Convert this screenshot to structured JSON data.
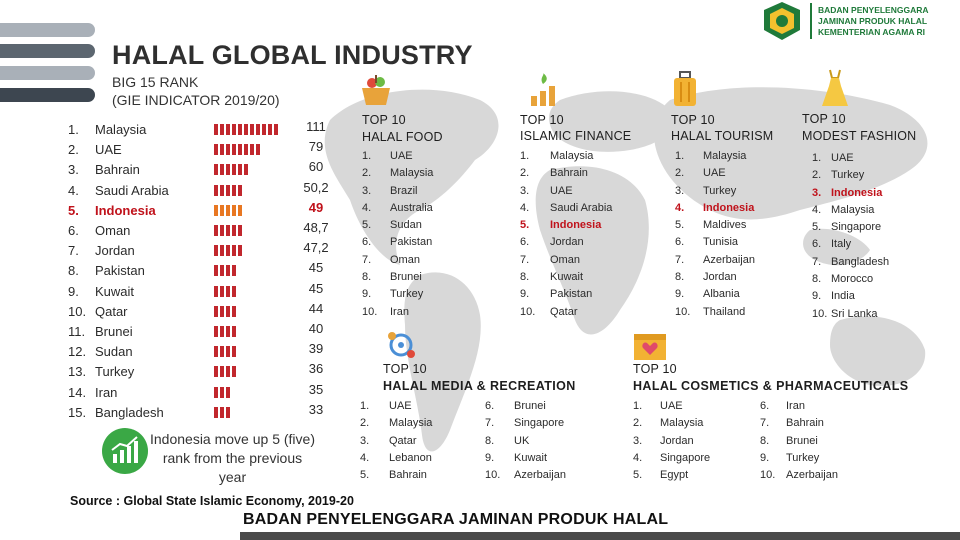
{
  "header": {
    "title": "HALAL GLOBAL INDUSTRY",
    "subtitle_line1": "BIG 15 RANK",
    "subtitle_line2": "(GIE INDICATOR 2019/20)"
  },
  "logo": {
    "line1": "BADAN PENYELENGGARA",
    "line2": "JAMINAN PRODUK HALAL",
    "line3": "KEMENTERIAN AGAMA RI"
  },
  "ranking": [
    {
      "rank": "1.",
      "country": "Malaysia",
      "score": "111",
      "score_value": 111,
      "highlight": false
    },
    {
      "rank": "2.",
      "country": "UAE",
      "score": "79",
      "score_value": 79,
      "highlight": false
    },
    {
      "rank": "3.",
      "country": "Bahrain",
      "score": "60",
      "score_value": 60,
      "highlight": false
    },
    {
      "rank": "4.",
      "country": "Saudi Arabia",
      "score": "50,2",
      "score_value": 50.2,
      "highlight": false
    },
    {
      "rank": "5.",
      "country": "Indonesia",
      "score": "49",
      "score_value": 49,
      "highlight": true
    },
    {
      "rank": "6.",
      "country": "Oman",
      "score": "48,7",
      "score_value": 48.7,
      "highlight": false
    },
    {
      "rank": "7.",
      "country": "Jordan",
      "score": "47,2",
      "score_value": 47.2,
      "highlight": false
    },
    {
      "rank": "8.",
      "country": "Pakistan",
      "score": "45",
      "score_value": 45,
      "highlight": false
    },
    {
      "rank": "9.",
      "country": "Kuwait",
      "score": "45",
      "score_value": 45,
      "highlight": false
    },
    {
      "rank": "10.",
      "country": "Qatar",
      "score": "44",
      "score_value": 44,
      "highlight": false
    },
    {
      "rank": "11.",
      "country": "Brunei",
      "score": "40",
      "score_value": 40,
      "highlight": false
    },
    {
      "rank": "12.",
      "country": "Sudan",
      "score": "39",
      "score_value": 39,
      "highlight": false
    },
    {
      "rank": "13.",
      "country": "Turkey",
      "score": "36",
      "score_value": 36,
      "highlight": false
    },
    {
      "rank": "14.",
      "country": "Iran",
      "score": "35",
      "score_value": 35,
      "highlight": false
    },
    {
      "rank": "15.",
      "country": "Bangladesh",
      "score": "33",
      "score_value": 33,
      "highlight": false
    }
  ],
  "note": "Indonesia move up 5 (five) rank from the previous year",
  "categories": {
    "food": {
      "title1": "TOP 10",
      "title2": "HALAL FOOD",
      "icon": "food-basket-icon",
      "items": [
        {
          "n": "1.",
          "t": "UAE",
          "hl": false
        },
        {
          "n": "2.",
          "t": "Malaysia",
          "hl": false
        },
        {
          "n": "3.",
          "t": "Brazil",
          "hl": false
        },
        {
          "n": "4.",
          "t": "Australia",
          "hl": false
        },
        {
          "n": "5.",
          "t": "Sudan",
          "hl": false
        },
        {
          "n": "6.",
          "t": "Pakistan",
          "hl": false
        },
        {
          "n": "7.",
          "t": "Oman",
          "hl": false
        },
        {
          "n": "8.",
          "t": "Brunei",
          "hl": false
        },
        {
          "n": "9.",
          "t": "Turkey",
          "hl": false
        },
        {
          "n": "10.",
          "t": "Iran",
          "hl": false
        }
      ]
    },
    "finance": {
      "title1": "TOP 10",
      "title2": "ISLAMIC FINANCE",
      "icon": "money-growth-icon",
      "items": [
        {
          "n": "1.",
          "t": "Malaysia",
          "hl": false
        },
        {
          "n": "2.",
          "t": "Bahrain",
          "hl": false
        },
        {
          "n": "3.",
          "t": "UAE",
          "hl": false
        },
        {
          "n": "4.",
          "t": "Saudi Arabia",
          "hl": false
        },
        {
          "n": "5.",
          "t": "Indonesia",
          "hl": true
        },
        {
          "n": "6.",
          "t": "Jordan",
          "hl": false
        },
        {
          "n": "7.",
          "t": "Oman",
          "hl": false
        },
        {
          "n": "8.",
          "t": "Kuwait",
          "hl": false
        },
        {
          "n": "9.",
          "t": "Pakistan",
          "hl": false
        },
        {
          "n": "10.",
          "t": "Qatar",
          "hl": false
        }
      ]
    },
    "tourism": {
      "title1": "TOP 10",
      "title2": "HALAL TOURISM",
      "icon": "suitcase-icon",
      "items": [
        {
          "n": "1.",
          "t": "Malaysia",
          "hl": false
        },
        {
          "n": "2.",
          "t": "UAE",
          "hl": false
        },
        {
          "n": "3.",
          "t": "Turkey",
          "hl": false
        },
        {
          "n": "4.",
          "t": "Indonesia",
          "hl": true
        },
        {
          "n": "5.",
          "t": "Maldives",
          "hl": false
        },
        {
          "n": "6.",
          "t": "Tunisia",
          "hl": false
        },
        {
          "n": "7.",
          "t": "Azerbaijan",
          "hl": false
        },
        {
          "n": "8.",
          "t": "Jordan",
          "hl": false
        },
        {
          "n": "9.",
          "t": "Albania",
          "hl": false
        },
        {
          "n": "10.",
          "t": "Thailand",
          "hl": false
        }
      ]
    },
    "fashion": {
      "title1": "TOP 10",
      "title2": "MODEST FASHION",
      "icon": "dress-icon",
      "items": [
        {
          "n": "1.",
          "t": "UAE",
          "hl": false
        },
        {
          "n": "2.",
          "t": "Turkey",
          "hl": false
        },
        {
          "n": "3.",
          "t": "Indonesia",
          "hl": true
        },
        {
          "n": "4.",
          "t": "Malaysia",
          "hl": false
        },
        {
          "n": "5.",
          "t": "Singapore",
          "hl": false
        },
        {
          "n": "6.",
          "t": "Italy",
          "hl": false
        },
        {
          "n": "7.",
          "t": "Bangladesh",
          "hl": false
        },
        {
          "n": "8.",
          "t": "Morocco",
          "hl": false
        },
        {
          "n": "9.",
          "t": "India",
          "hl": false
        },
        {
          "n": "10.",
          "t": "Sri Lanka",
          "hl": false
        }
      ]
    },
    "media": {
      "title1": "TOP 10",
      "title2": "HALAL MEDIA & RECREATION",
      "icon": "media-network-icon",
      "items": [
        {
          "n": "1.",
          "t": "UAE",
          "hl": false
        },
        {
          "n": "2.",
          "t": "Malaysia",
          "hl": false
        },
        {
          "n": "3.",
          "t": "Qatar",
          "hl": false
        },
        {
          "n": "4.",
          "t": "Lebanon",
          "hl": false
        },
        {
          "n": "5.",
          "t": "Bahrain",
          "hl": false
        },
        {
          "n": "6.",
          "t": "Brunei",
          "hl": false
        },
        {
          "n": "7.",
          "t": "Singapore",
          "hl": false
        },
        {
          "n": "8.",
          "t": "UK",
          "hl": false
        },
        {
          "n": "9.",
          "t": "Kuwait",
          "hl": false
        },
        {
          "n": "10.",
          "t": "Azerbaijan",
          "hl": false
        }
      ]
    },
    "cosmetics": {
      "title1": "TOP 10",
      "title2": "HALAL COSMETICS & PHARMACEUTICALS",
      "icon": "cosmetics-box-icon",
      "items": [
        {
          "n": "1.",
          "t": "UAE",
          "hl": false
        },
        {
          "n": "2.",
          "t": "Malaysia",
          "hl": false
        },
        {
          "n": "3.",
          "t": "Jordan",
          "hl": false
        },
        {
          "n": "4.",
          "t": "Singapore",
          "hl": false
        },
        {
          "n": "5.",
          "t": "Egypt",
          "hl": false
        },
        {
          "n": "6.",
          "t": "Iran",
          "hl": false
        },
        {
          "n": "7.",
          "t": "Bahrain",
          "hl": false
        },
        {
          "n": "8.",
          "t": "Brunei",
          "hl": false
        },
        {
          "n": "9.",
          "t": "Turkey",
          "hl": false
        },
        {
          "n": "10.",
          "t": "Azerbaijan",
          "hl": false
        }
      ]
    }
  },
  "source": "Source : Global State Islamic Economy, 2019-20",
  "footer": "BADAN PENYELENGGARA JAMINAN PRODUK HALAL",
  "colors": {
    "bar": "#c1272d",
    "highlight_bar": "#e87722",
    "highlight_text": "#c0121b",
    "accent_green": "#3aa845"
  }
}
